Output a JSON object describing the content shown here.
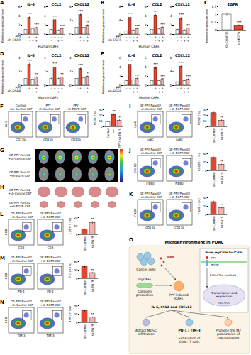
{
  "chart_data": [
    {
      "type": "bar",
      "panel": "A",
      "group_label": "Human CAFs",
      "ylabel": "Relative expression level",
      "colors": [
        "#ffffff",
        "#e8432e",
        "#ffffff",
        "#f6b3aa"
      ],
      "condition_rows": [
        {
          "name": "PPY",
          "marks": [
            "-",
            "+",
            "-",
            "+"
          ]
        },
        {
          "name": "sh-EGFR",
          "marks": [
            "-",
            "-",
            "+",
            "+"
          ]
        }
      ],
      "charts": [
        {
          "title": "IL-6",
          "values": [
            1,
            3.6,
            1.1,
            1.4
          ],
          "errors": [
            0.1,
            0.3,
            0.12,
            0.15
          ],
          "ylim": [
            0,
            6
          ],
          "yticks": [
            0,
            2,
            4,
            6
          ],
          "annotations": [
            {
              "bar": 1,
              "label": "***"
            },
            {
              "bar": 3,
              "label": "***"
            }
          ]
        },
        {
          "title": "CCL2",
          "values": [
            1,
            3.1,
            0.9,
            1.2
          ],
          "errors": [
            0.1,
            0.25,
            0.1,
            0.12
          ],
          "ylim": [
            0,
            6
          ],
          "yticks": [
            0,
            2,
            4,
            6
          ],
          "annotations": [
            {
              "bar": 1,
              "label": "***"
            },
            {
              "bar": 3,
              "label": "***"
            }
          ]
        },
        {
          "title": "CXCL12",
          "values": [
            1,
            2.8,
            1.0,
            1.3
          ],
          "errors": [
            0.1,
            0.2,
            0.1,
            0.1
          ],
          "ylim": [
            0,
            4
          ],
          "yticks": [
            0,
            2,
            4
          ],
          "annotations": [
            {
              "bar": 1,
              "label": "***"
            },
            {
              "bar": 3,
              "label": "**"
            }
          ]
        }
      ]
    },
    {
      "type": "bar",
      "panel": "B",
      "group_label": "Human CAFs",
      "ylabel": "Relative expression level",
      "colors": [
        "#ffffff",
        "#e8432e",
        "#ffffff",
        "#f6b3aa"
      ],
      "condition_rows": [
        {
          "name": "PPY",
          "marks": [
            "-",
            "+",
            "-",
            "+"
          ]
        },
        {
          "name": "sh-EGFR",
          "marks": [
            "-",
            "-",
            "+",
            "+"
          ]
        }
      ],
      "charts": [
        {
          "title": "IL-6",
          "values": [
            1,
            4.8,
            1.2,
            1.6
          ],
          "errors": [
            0.1,
            0.4,
            0.1,
            0.2
          ],
          "ylim": [
            0,
            8
          ],
          "yticks": [
            0,
            4,
            8
          ],
          "annotations": [
            {
              "bar": 1,
              "label": "***"
            },
            {
              "bar": 3,
              "label": "***"
            }
          ]
        },
        {
          "title": "CCL2",
          "values": [
            1,
            4.1,
            1.1,
            1.5
          ],
          "errors": [
            0.1,
            0.3,
            0.1,
            0.15
          ],
          "ylim": [
            0,
            6
          ],
          "yticks": [
            0,
            2,
            4,
            6
          ],
          "annotations": [
            {
              "bar": 1,
              "label": "***"
            },
            {
              "bar": 3,
              "label": "***"
            }
          ]
        },
        {
          "title": "CXCL12",
          "values": [
            1,
            3.4,
            0.9,
            1.3
          ],
          "errors": [
            0.1,
            0.3,
            0.1,
            0.1
          ],
          "ylim": [
            0,
            6
          ],
          "yticks": [
            0,
            2,
            4,
            6
          ],
          "annotations": [
            {
              "bar": 1,
              "label": "***"
            },
            {
              "bar": 3,
              "label": "**"
            }
          ]
        }
      ]
    },
    {
      "type": "bar",
      "panel": "C",
      "title": "EGFR",
      "ylabel": "Relative expression level",
      "categories": [
        "sh-Control",
        "sh-EGFR"
      ],
      "values": [
        1,
        0.3
      ],
      "errors": [
        0.08,
        0.05
      ],
      "colors": [
        "#ffffff",
        "#e8432e"
      ],
      "ylim": [
        0,
        1.5
      ],
      "yticks": [
        0,
        0.5,
        1,
        1.5
      ],
      "annotations": [
        {
          "bar": 1,
          "label": "***"
        }
      ]
    },
    {
      "type": "bar",
      "panel": "D",
      "group_label": "Murine CAFs",
      "ylabel": "Relative expression level",
      "colors": [
        "#ffffff",
        "#e8432e",
        "#ffffff",
        "#f6b3aa"
      ],
      "condition_rows": [
        {
          "name": "PPY",
          "marks": [
            "-",
            "+",
            "-",
            "+"
          ]
        },
        {
          "name": "sh-EGFR",
          "marks": [
            "-",
            "-",
            "+",
            "+"
          ]
        }
      ],
      "charts": [
        {
          "title": "IL-6",
          "values": [
            1,
            3.0,
            0.9,
            1.2
          ],
          "errors": [
            0.1,
            0.25,
            0.1,
            0.1
          ],
          "ylim": [
            0,
            4
          ],
          "yticks": [
            0,
            2,
            4
          ],
          "annotations": [
            {
              "bar": 1,
              "label": "***"
            },
            {
              "bar": 3,
              "label": "**"
            }
          ]
        },
        {
          "title": "CCL2",
          "values": [
            1,
            2.6,
            1.0,
            1.2
          ],
          "errors": [
            0.1,
            0.2,
            0.1,
            0.1
          ],
          "ylim": [
            0,
            4
          ],
          "yticks": [
            0,
            2,
            4
          ],
          "annotations": [
            {
              "bar": 1,
              "label": "***"
            },
            {
              "bar": 3,
              "label": "**"
            }
          ]
        },
        {
          "title": "CXCL12",
          "values": [
            1,
            2.4,
            1.1,
            1.3
          ],
          "errors": [
            0.1,
            0.2,
            0.1,
            0.1
          ],
          "ylim": [
            0,
            4
          ],
          "yticks": [
            0,
            2,
            4
          ],
          "annotations": [
            {
              "bar": 1,
              "label": "***"
            },
            {
              "bar": 3,
              "label": "*"
            }
          ]
        }
      ]
    },
    {
      "type": "bar",
      "panel": "E",
      "group_label": "Murine CAFs",
      "ylabel": "Relative expression level",
      "colors": [
        "#ffffff",
        "#e8432e",
        "#ffffff",
        "#f6b3aa"
      ],
      "condition_rows": [
        {
          "name": "PPY",
          "marks": [
            "-",
            "+",
            "-",
            "+"
          ]
        },
        {
          "name": "sh-EGFR",
          "marks": [
            "-",
            "-",
            "+",
            "+"
          ]
        }
      ],
      "charts": [
        {
          "title": "IL-6",
          "values": [
            1,
            4.5,
            1.2,
            1.5
          ],
          "errors": [
            0.1,
            0.35,
            0.1,
            0.15
          ],
          "ylim": [
            0,
            6
          ],
          "yticks": [
            0,
            2,
            4,
            6
          ],
          "annotations": [
            {
              "bar": 1,
              "label": "***"
            },
            {
              "bar": 3,
              "label": "***"
            }
          ]
        },
        {
          "title": "CCL2",
          "values": [
            1,
            3.8,
            1.0,
            1.4
          ],
          "errors": [
            0.1,
            0.3,
            0.1,
            0.12
          ],
          "ylim": [
            0,
            6
          ],
          "yticks": [
            0,
            2,
            4,
            6
          ],
          "annotations": [
            {
              "bar": 1,
              "label": "***"
            },
            {
              "bar": 3,
              "label": "***"
            }
          ]
        },
        {
          "title": "CXCL12",
          "values": [
            1,
            5.5,
            1.3,
            1.8
          ],
          "errors": [
            0.1,
            0.4,
            0.1,
            0.2
          ],
          "ylim": [
            0,
            8
          ],
          "yticks": [
            0,
            4,
            8
          ],
          "annotations": [
            {
              "bar": 1,
              "label": "***"
            },
            {
              "bar": 3,
              "label": "***"
            }
          ]
        }
      ]
    },
    {
      "type": "bar",
      "panel": "F",
      "ylabel": "MDSC (%)",
      "categories": [
        "Control",
        "PPY",
        "PPY+sh-EGFR"
      ],
      "values": [
        8,
        21,
        11
      ],
      "errors": [
        1,
        2,
        1.5
      ],
      "colors": [
        "#ffffff",
        "#e8432e",
        "#f6b3aa"
      ],
      "ylim": [
        0,
        30
      ],
      "yticks": [
        0,
        10,
        20,
        30
      ],
      "annotations": [
        {
          "bar": 1,
          "label": "**"
        },
        {
          "bar": 2,
          "label": "*"
        }
      ]
    },
    {
      "type": "bar",
      "panel": "I",
      "ylabel": "MDSC (%)",
      "categories": [
        "sh-Control",
        "sh-EGFR"
      ],
      "values": [
        24,
        11
      ],
      "errors": [
        2,
        1.5
      ],
      "colors": [
        "#e8432e",
        "#f6b3aa"
      ],
      "ylim": [
        0,
        30
      ],
      "yticks": [
        0,
        10,
        20,
        30
      ],
      "annotations": [
        {
          "bar": 1,
          "label": "**"
        }
      ]
    },
    {
      "type": "bar",
      "panel": "J",
      "ylabel": "CD206+ (%)",
      "categories": [
        "sh-Control",
        "sh-EGFR"
      ],
      "values": [
        38,
        18
      ],
      "errors": [
        3,
        2
      ],
      "colors": [
        "#e8432e",
        "#f6b3aa"
      ],
      "ylim": [
        0,
        50
      ],
      "yticks": [
        0,
        25,
        50
      ],
      "annotations": [
        {
          "bar": 1,
          "label": "**"
        }
      ]
    },
    {
      "type": "bar",
      "panel": "K",
      "ylabel": "F4/80+ (%)",
      "categories": [
        "sh-Control",
        "sh-EGFR"
      ],
      "values": [
        30,
        16
      ],
      "errors": [
        2.5,
        2
      ],
      "colors": [
        "#e8432e",
        "#f6b3aa"
      ],
      "ylim": [
        0,
        40
      ],
      "yticks": [
        0,
        20,
        40
      ],
      "annotations": [
        {
          "bar": 1,
          "label": "**"
        }
      ]
    },
    {
      "type": "bar",
      "panel": "L",
      "ylabel": "CD8+ T (%)",
      "categories": [
        "sh-Control",
        "sh-EGFR"
      ],
      "values": [
        6,
        14
      ],
      "errors": [
        1,
        1.5
      ],
      "colors": [
        "#e8432e",
        "#f6b3aa"
      ],
      "ylim": [
        0,
        20
      ],
      "yticks": [
        0,
        10,
        20
      ],
      "annotations": [
        {
          "bar": 1,
          "label": "**"
        }
      ]
    },
    {
      "type": "bar",
      "panel": "M",
      "ylabel": "PD-1+ (%)",
      "categories": [
        "sh-Control",
        "sh-EGFR"
      ],
      "values": [
        42,
        20
      ],
      "errors": [
        4,
        2.5
      ],
      "colors": [
        "#e8432e",
        "#f6b3aa"
      ],
      "ylim": [
        0,
        60
      ],
      "yticks": [
        0,
        30,
        60
      ],
      "annotations": [
        {
          "bar": 1,
          "label": "**"
        }
      ]
    },
    {
      "type": "bar",
      "panel": "N",
      "ylabel": "TIM-3+ (%)",
      "categories": [
        "sh-Control",
        "sh-EGFR"
      ],
      "values": [
        35,
        15
      ],
      "errors": [
        3,
        2
      ],
      "colors": [
        "#e8432e",
        "#f6b3aa"
      ],
      "ylim": [
        0,
        50
      ],
      "yticks": [
        0,
        25,
        50
      ],
      "annotations": [
        {
          "bar": 1,
          "label": "**"
        }
      ]
    }
  ],
  "flow_cytometry": [
    {
      "panel": "F",
      "samples": [
        "Control +sh-Control CAF",
        "PPY +sh-Control CAF",
        "PPY +sh-EGFR CAF"
      ],
      "x_label": "CD11b",
      "y_label": "Gr-1"
    },
    {
      "panel": "I",
      "samples": [
        "OE-PPY Panc02 +sh-Control CAF",
        "OE-PPY Panc02 +sh-EGFR CAF"
      ],
      "x_label": "Ly6C",
      "y_label": "Ly6G"
    },
    {
      "panel": "J",
      "samples": [
        "OE-PPY Panc02 +sh-Control CAF",
        "OE-PPY Panc02 +sh-EGFR CAF"
      ],
      "x_label": "F4/80",
      "y_label": "CD206"
    },
    {
      "panel": "K",
      "samples": [
        "OE-PPY Panc02 +sh-Control CAF",
        "OE-PPY Panc02 +sh-EGFR CAF"
      ],
      "x_label": "CD11b",
      "y_label": "F4/80"
    },
    {
      "panel": "L",
      "samples": [
        "OE-PPY Panc02 +sh-Control CAF",
        "OE-PPY Panc02 +sh-EGFR CAF"
      ],
      "x_label": "CD3",
      "y_label": "CD8"
    },
    {
      "panel": "M",
      "samples": [
        "OE-PPY Panc02 +sh-Control CAF",
        "OE-PPY Panc02 +sh-EGFR CAF"
      ],
      "x_label": "PD-1",
      "y_label": "CD8"
    },
    {
      "panel": "N",
      "samples": [
        "OE-PPY Panc02 +sh-Control CAF",
        "OE-PPY Panc02 +sh-EGFR CAF"
      ],
      "x_label": "TIM-3",
      "y_label": "CD8"
    }
  ],
  "images": [
    {
      "panel": "G",
      "row_labels": [
        "OE-PPY Panc02 +sh-Control CAF",
        "OE-PPY Panc02 +sh-EGFR CAF"
      ]
    },
    {
      "panel": "H",
      "row_labels": [
        "OE-PPY Panc02 +sh-Control CAF",
        "OE-PPY Panc02 +sh-EGFR CAF"
      ]
    }
  ],
  "diagram": {
    "panel": "O",
    "title": "Microenvironment in PDAC",
    "cancer_cells": "Cancer cells",
    "ppy": "PPY",
    "mycafs": "myCAFs",
    "collagen": "Collagen production",
    "icafs": "PPY-induced iCAFs",
    "cytokines": "IL-6, CCL2 and CXCL12",
    "inset_title": "From myCAFs to iCAFs",
    "receptor": "EGFR",
    "nucleus_entry": "Enter the nucleus",
    "transcription": "Transcription and expression",
    "nucleus": "Nucleus",
    "mdsc": "Attract MDSC infiltration",
    "checkpoint": "PD-1 / TIM-3",
    "macrophage": "Promote the M2 polarization of macrophages",
    "exhaustion": "Exhaustion of CD8+ T cells"
  }
}
